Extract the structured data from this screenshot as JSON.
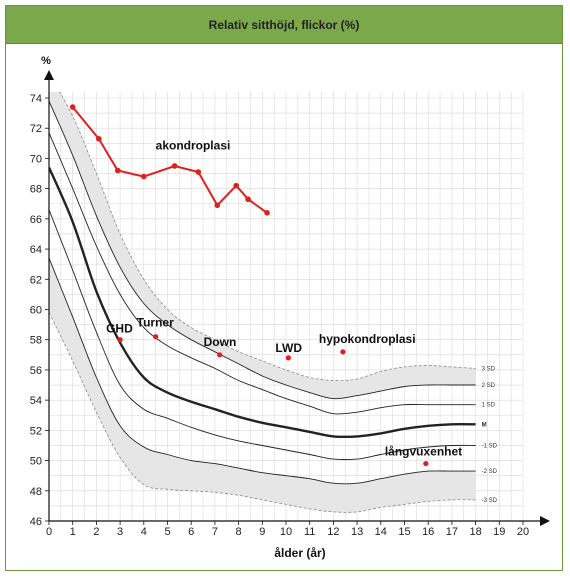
{
  "chart_data": {
    "type": "line",
    "title": "Relativ sitthöjd, flickor (%)",
    "ylabel": "%",
    "xlabel": "ålder (år)",
    "xlim": [
      0,
      20
    ],
    "ylim": [
      46,
      74
    ],
    "x_ticks": [
      0,
      1,
      2,
      3,
      4,
      5,
      6,
      7,
      8,
      9,
      10,
      11,
      12,
      13,
      14,
      15,
      16,
      17,
      18,
      19,
      20
    ],
    "y_ticks": [
      46,
      48,
      50,
      52,
      54,
      56,
      58,
      60,
      62,
      64,
      66,
      68,
      70,
      72,
      74
    ],
    "grid": true,
    "reference_curves": [
      {
        "name": "3 SD",
        "dashed": true,
        "points": [
          [
            0,
            75.6
          ],
          [
            1,
            72.8
          ],
          [
            2,
            69.0
          ],
          [
            3,
            65.0
          ],
          [
            4,
            62.0
          ],
          [
            5,
            60.0
          ],
          [
            6,
            58.8
          ],
          [
            7,
            58.0
          ],
          [
            8,
            57.2
          ],
          [
            9,
            56.6
          ],
          [
            10,
            56.0
          ],
          [
            11,
            55.5
          ],
          [
            12,
            55.3
          ],
          [
            13,
            55.4
          ],
          [
            14,
            55.9
          ],
          [
            15,
            56.2
          ],
          [
            16,
            56.3
          ],
          [
            17,
            56.2
          ],
          [
            18,
            56.1
          ]
        ]
      },
      {
        "name": "2 SD",
        "points": [
          [
            0,
            73.8
          ],
          [
            1,
            70.2
          ],
          [
            2,
            66.2
          ],
          [
            3,
            62.8
          ],
          [
            4,
            60.4
          ],
          [
            5,
            59.0
          ],
          [
            6,
            58.0
          ],
          [
            7,
            57.2
          ],
          [
            8,
            56.4
          ],
          [
            9,
            55.6
          ],
          [
            10,
            55.0
          ],
          [
            11,
            54.5
          ],
          [
            12,
            54.1
          ],
          [
            13,
            54.3
          ],
          [
            14,
            54.6
          ],
          [
            15,
            54.9
          ],
          [
            16,
            55.0
          ],
          [
            17,
            55.0
          ],
          [
            18,
            55.0
          ]
        ]
      },
      {
        "name": "1 SD",
        "points": [
          [
            0,
            71.7
          ],
          [
            1,
            68.0
          ],
          [
            2,
            64.2
          ],
          [
            3,
            61.0
          ],
          [
            4,
            58.8
          ],
          [
            5,
            57.6
          ],
          [
            6,
            56.8
          ],
          [
            7,
            56.1
          ],
          [
            8,
            55.3
          ],
          [
            9,
            54.7
          ],
          [
            10,
            54.1
          ],
          [
            11,
            53.6
          ],
          [
            12,
            53.1
          ],
          [
            13,
            53.2
          ],
          [
            14,
            53.5
          ],
          [
            15,
            53.7
          ],
          [
            16,
            53.7
          ],
          [
            17,
            53.7
          ],
          [
            18,
            53.7
          ]
        ]
      },
      {
        "name": "M",
        "bold": true,
        "points": [
          [
            0,
            69.4
          ],
          [
            1,
            65.8
          ],
          [
            2,
            61.2
          ],
          [
            3,
            57.8
          ],
          [
            4,
            55.5
          ],
          [
            5,
            54.5
          ],
          [
            6,
            53.9
          ],
          [
            7,
            53.4
          ],
          [
            8,
            52.9
          ],
          [
            9,
            52.5
          ],
          [
            10,
            52.2
          ],
          [
            11,
            51.9
          ],
          [
            12,
            51.6
          ],
          [
            13,
            51.6
          ],
          [
            14,
            51.8
          ],
          [
            15,
            52.1
          ],
          [
            16,
            52.3
          ],
          [
            17,
            52.4
          ],
          [
            18,
            52.4
          ]
        ]
      },
      {
        "name": "-1 SD",
        "points": [
          [
            0,
            66.6
          ],
          [
            1,
            62.6
          ],
          [
            2,
            58.5
          ],
          [
            3,
            55.0
          ],
          [
            4,
            53.4
          ],
          [
            5,
            52.8
          ],
          [
            6,
            52.2
          ],
          [
            7,
            51.7
          ],
          [
            8,
            51.3
          ],
          [
            9,
            51.0
          ],
          [
            10,
            50.7
          ],
          [
            11,
            50.4
          ],
          [
            12,
            50.1
          ],
          [
            13,
            50.1
          ],
          [
            14,
            50.4
          ],
          [
            15,
            50.7
          ],
          [
            16,
            50.9
          ],
          [
            17,
            51.0
          ],
          [
            18,
            51.0
          ]
        ]
      },
      {
        "name": "-2 SD",
        "points": [
          [
            0,
            63.4
          ],
          [
            1,
            59.5
          ],
          [
            2,
            55.5
          ],
          [
            3,
            52.3
          ],
          [
            4,
            50.9
          ],
          [
            5,
            50.4
          ],
          [
            6,
            50.0
          ],
          [
            7,
            49.8
          ],
          [
            8,
            49.5
          ],
          [
            9,
            49.2
          ],
          [
            10,
            49.0
          ],
          [
            11,
            48.8
          ],
          [
            12,
            48.5
          ],
          [
            13,
            48.5
          ],
          [
            14,
            48.8
          ],
          [
            15,
            49.1
          ],
          [
            16,
            49.3
          ],
          [
            17,
            49.3
          ],
          [
            18,
            49.3
          ]
        ]
      },
      {
        "name": "-3 SD",
        "dashed": true,
        "points": [
          [
            0,
            59.8
          ],
          [
            1,
            56.6
          ],
          [
            2,
            53.2
          ],
          [
            3,
            50.2
          ],
          [
            4,
            48.4
          ],
          [
            5,
            48.1
          ],
          [
            6,
            48.0
          ],
          [
            7,
            47.9
          ],
          [
            8,
            47.7
          ],
          [
            9,
            47.4
          ],
          [
            10,
            47.1
          ],
          [
            11,
            46.8
          ],
          [
            12,
            46.6
          ],
          [
            13,
            46.6
          ],
          [
            14,
            46.9
          ],
          [
            15,
            47.1
          ],
          [
            16,
            47.3
          ],
          [
            17,
            47.4
          ],
          [
            18,
            47.4
          ]
        ]
      }
    ],
    "series": [
      {
        "name": "akondroplasi",
        "color": "#e0201e",
        "points": [
          [
            1,
            73.4
          ],
          [
            2.1,
            71.3
          ],
          [
            2.9,
            69.2
          ],
          [
            4,
            68.8
          ],
          [
            5.3,
            69.5
          ],
          [
            6.3,
            69.1
          ],
          [
            7.1,
            66.9
          ],
          [
            7.9,
            68.2
          ],
          [
            8.4,
            67.3
          ],
          [
            9.2,
            66.4
          ]
        ]
      }
    ],
    "labeled_points": [
      {
        "name": "GHD",
        "x": 3.0,
        "y": 58.0
      },
      {
        "name": "Turner",
        "x": 4.5,
        "y": 58.2
      },
      {
        "name": "Down",
        "x": 7.2,
        "y": 57.0
      },
      {
        "name": "LWD",
        "x": 10.1,
        "y": 56.8
      },
      {
        "name": "hypokondroplasi",
        "x": 12.4,
        "y": 57.2
      },
      {
        "name": "långvuxenhet",
        "x": 15.9,
        "y": 49.8
      }
    ],
    "series_label": "akondroplasi",
    "curve_labels": [
      "3 SD",
      "2 SD",
      "1 SD",
      "M",
      "-1 SD",
      "-2 SD",
      "-3 SD"
    ],
    "colors": {
      "header": "#7aa84a",
      "points": "#e0201e",
      "band": "#e6e6e6",
      "grid": "#d9d9d9"
    }
  }
}
